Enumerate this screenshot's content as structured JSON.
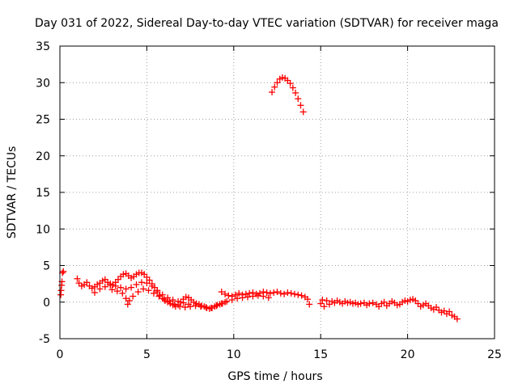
{
  "chart_data": {
    "type": "scatter",
    "title": "Day 031 of 2022, Sidereal Day-to-day VTEC variation (SDTVAR) for receiver maga",
    "xlabel": "GPS time / hours",
    "ylabel": "SDTVAR / TECUs",
    "xlim": [
      0,
      25
    ],
    "ylim": [
      -5,
      35
    ],
    "xticks": [
      0,
      5,
      10,
      15,
      20,
      25
    ],
    "yticks": [
      -5,
      0,
      5,
      10,
      15,
      20,
      25,
      30,
      35
    ],
    "grid": true,
    "marker": "plus",
    "color": "#ff0000",
    "series": [
      {
        "name": "SDTVAR",
        "points": [
          [
            0.05,
            1.0
          ],
          [
            0.07,
            1.6
          ],
          [
            0.1,
            2.3
          ],
          [
            0.12,
            2.8
          ],
          [
            0.15,
            4.0
          ],
          [
            0.2,
            4.2
          ],
          [
            1.0,
            3.2
          ],
          [
            1.1,
            2.6
          ],
          [
            1.25,
            2.2
          ],
          [
            1.4,
            2.4
          ],
          [
            1.55,
            2.7
          ],
          [
            1.7,
            2.2
          ],
          [
            1.85,
            1.9
          ],
          [
            2.0,
            2.1
          ],
          [
            2.15,
            2.4
          ],
          [
            2.3,
            2.6
          ],
          [
            2.45,
            2.9
          ],
          [
            2.6,
            3.1
          ],
          [
            2.75,
            2.7
          ],
          [
            2.9,
            2.5
          ],
          [
            3.05,
            2.4
          ],
          [
            3.2,
            2.7
          ],
          [
            3.35,
            3.1
          ],
          [
            3.5,
            3.5
          ],
          [
            3.65,
            3.8
          ],
          [
            3.8,
            3.9
          ],
          [
            3.95,
            3.6
          ],
          [
            4.1,
            3.3
          ],
          [
            4.25,
            3.5
          ],
          [
            4.4,
            3.8
          ],
          [
            4.55,
            4.0
          ],
          [
            4.7,
            4.0
          ],
          [
            4.85,
            3.8
          ],
          [
            5.0,
            3.4
          ],
          [
            5.15,
            3.0
          ],
          [
            5.3,
            2.5
          ],
          [
            5.45,
            2.0
          ],
          [
            5.6,
            1.4
          ],
          [
            5.75,
            0.9
          ],
          [
            5.9,
            0.5
          ],
          [
            6.05,
            0.2
          ],
          [
            6.2,
            0.0
          ],
          [
            6.35,
            -0.2
          ],
          [
            6.5,
            -0.4
          ],
          [
            6.65,
            -0.6
          ],
          [
            6.8,
            -0.4
          ],
          [
            6.95,
            0.0
          ],
          [
            7.1,
            0.4
          ],
          [
            7.25,
            0.7
          ],
          [
            7.4,
            0.6
          ],
          [
            7.55,
            0.3
          ],
          [
            7.7,
            0.0
          ],
          [
            7.85,
            -0.2
          ],
          [
            8.0,
            -0.3
          ],
          [
            8.15,
            -0.5
          ],
          [
            8.3,
            -0.6
          ],
          [
            8.45,
            -0.8
          ],
          [
            8.6,
            -0.9
          ],
          [
            8.75,
            -0.8
          ],
          [
            8.9,
            -0.6
          ],
          [
            9.05,
            -0.4
          ],
          [
            9.2,
            -0.3
          ],
          [
            9.35,
            -0.2
          ],
          [
            9.5,
            0.0
          ],
          [
            2.0,
            1.3
          ],
          [
            2.3,
            1.8
          ],
          [
            2.6,
            2.1
          ],
          [
            2.9,
            2.3
          ],
          [
            3.2,
            2.2
          ],
          [
            3.5,
            2.0
          ],
          [
            3.8,
            1.8
          ],
          [
            4.1,
            2.0
          ],
          [
            4.4,
            2.4
          ],
          [
            4.7,
            2.7
          ],
          [
            5.0,
            2.6
          ],
          [
            5.3,
            2.2
          ],
          [
            5.6,
            1.6
          ],
          [
            5.9,
            1.0
          ],
          [
            6.2,
            0.6
          ],
          [
            6.5,
            0.3
          ],
          [
            6.8,
            0.1
          ],
          [
            7.1,
            -0.1
          ],
          [
            7.4,
            -0.3
          ],
          [
            3.0,
            1.7
          ],
          [
            3.3,
            1.5
          ],
          [
            3.6,
            1.2
          ],
          [
            3.8,
            0.5
          ],
          [
            3.9,
            -0.3
          ],
          [
            4.0,
            0.2
          ],
          [
            4.2,
            0.8
          ],
          [
            4.5,
            1.4
          ],
          [
            4.8,
            1.8
          ],
          [
            5.1,
            1.6
          ],
          [
            5.4,
            1.2
          ],
          [
            5.7,
            0.8
          ],
          [
            6.0,
            0.4
          ],
          [
            6.3,
            0.1
          ],
          [
            6.6,
            -0.3
          ],
          [
            6.9,
            -0.6
          ],
          [
            7.2,
            -0.7
          ],
          [
            7.5,
            -0.6
          ],
          [
            7.8,
            -0.5
          ],
          [
            8.1,
            -0.6
          ],
          [
            8.4,
            -0.7
          ],
          [
            8.7,
            -0.8
          ],
          [
            9.0,
            -0.5
          ],
          [
            9.3,
            -0.2
          ],
          [
            9.6,
            0.1
          ],
          [
            9.9,
            0.3
          ],
          [
            10.2,
            0.5
          ],
          [
            10.5,
            0.6
          ],
          [
            10.8,
            0.7
          ],
          [
            11.1,
            0.8
          ],
          [
            11.4,
            0.9
          ],
          [
            11.7,
            0.8
          ],
          [
            12.0,
            0.6
          ],
          [
            9.3,
            1.4
          ],
          [
            9.5,
            1.1
          ],
          [
            9.7,
            0.9
          ],
          [
            9.9,
            0.8
          ],
          [
            10.1,
            1.0
          ],
          [
            10.3,
            1.2
          ],
          [
            10.5,
            1.0
          ],
          [
            10.7,
            1.1
          ],
          [
            10.9,
            1.2
          ],
          [
            11.1,
            1.3
          ],
          [
            11.3,
            1.1
          ],
          [
            11.5,
            1.2
          ],
          [
            11.7,
            1.4
          ],
          [
            11.9,
            1.3
          ],
          [
            12.1,
            1.2
          ],
          [
            12.3,
            1.3
          ],
          [
            12.5,
            1.4
          ],
          [
            12.7,
            1.2
          ],
          [
            12.9,
            1.1
          ],
          [
            13.1,
            1.3
          ],
          [
            13.3,
            1.2
          ],
          [
            13.5,
            1.1
          ],
          [
            13.7,
            1.0
          ],
          [
            13.9,
            0.9
          ],
          [
            14.1,
            0.7
          ],
          [
            14.25,
            0.4
          ],
          [
            14.35,
            -0.3
          ],
          [
            12.2,
            28.7
          ],
          [
            12.35,
            29.4
          ],
          [
            12.5,
            30.0
          ],
          [
            12.65,
            30.5
          ],
          [
            12.8,
            30.7
          ],
          [
            12.95,
            30.6
          ],
          [
            13.1,
            30.3
          ],
          [
            13.25,
            29.9
          ],
          [
            13.4,
            29.3
          ],
          [
            13.55,
            28.6
          ],
          [
            13.7,
            27.8
          ],
          [
            13.85,
            26.9
          ],
          [
            14.0,
            26.0
          ],
          [
            15.0,
            -0.2
          ],
          [
            15.1,
            0.3
          ],
          [
            15.2,
            -0.6
          ],
          [
            15.35,
            0.2
          ],
          [
            15.5,
            -0.3
          ],
          [
            15.65,
            0.1
          ],
          [
            15.8,
            -0.1
          ],
          [
            15.95,
            0.2
          ],
          [
            16.1,
            0.0
          ],
          [
            16.25,
            -0.2
          ],
          [
            16.4,
            0.1
          ],
          [
            16.55,
            -0.1
          ],
          [
            16.7,
            0.0
          ],
          [
            16.85,
            -0.2
          ],
          [
            17.0,
            -0.1
          ],
          [
            17.15,
            -0.3
          ],
          [
            17.3,
            -0.2
          ],
          [
            17.5,
            -0.1
          ],
          [
            17.65,
            -0.4
          ],
          [
            17.8,
            -0.2
          ],
          [
            18.0,
            -0.1
          ],
          [
            18.2,
            -0.3
          ],
          [
            18.35,
            -0.6
          ],
          [
            18.5,
            -0.2
          ],
          [
            18.65,
            0.0
          ],
          [
            18.8,
            -0.5
          ],
          [
            18.95,
            -0.2
          ],
          [
            19.1,
            0.1
          ],
          [
            19.25,
            -0.1
          ],
          [
            19.4,
            -0.4
          ],
          [
            19.55,
            -0.3
          ],
          [
            19.7,
            0.0
          ],
          [
            19.85,
            0.2
          ],
          [
            20.0,
            0.1
          ],
          [
            20.15,
            0.3
          ],
          [
            20.3,
            0.4
          ],
          [
            20.45,
            0.2
          ],
          [
            20.6,
            -0.2
          ],
          [
            20.75,
            -0.6
          ],
          [
            20.9,
            -0.4
          ],
          [
            21.05,
            -0.2
          ],
          [
            21.2,
            -0.5
          ],
          [
            21.35,
            -0.8
          ],
          [
            21.5,
            -1.0
          ],
          [
            21.65,
            -0.7
          ],
          [
            21.8,
            -1.1
          ],
          [
            21.95,
            -1.4
          ],
          [
            22.1,
            -1.2
          ],
          [
            22.25,
            -1.6
          ],
          [
            22.4,
            -1.3
          ],
          [
            22.55,
            -1.8
          ],
          [
            22.7,
            -2.0
          ],
          [
            22.85,
            -2.3
          ]
        ]
      }
    ]
  }
}
